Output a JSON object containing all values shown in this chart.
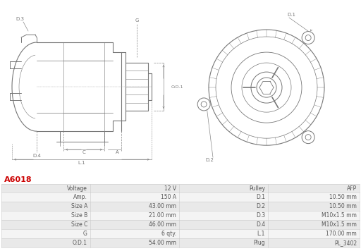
{
  "title": "A6018",
  "title_color": "#cc0000",
  "bg_color": "#ffffff",
  "table_data": [
    [
      "Voltage",
      "12 V",
      "Pulley",
      "AFP"
    ],
    [
      "Amp.",
      "150 A",
      "D.1",
      "10.50 mm"
    ],
    [
      "Size A",
      "43.00 mm",
      "D.2",
      "10.50 mm"
    ],
    [
      "Size B",
      "21.00 mm",
      "D.3",
      "M10x1.5 mm"
    ],
    [
      "Size C",
      "46.00 mm",
      "D.4",
      "M10x1.5 mm"
    ],
    [
      "G",
      "6 qty.",
      "L.1",
      "170.00 mm"
    ],
    [
      "O.D.1",
      "54.00 mm",
      "Plug",
      "PL_3402"
    ]
  ],
  "row_colors": [
    "#e9e9e9",
    "#f4f4f4",
    "#e9e9e9",
    "#f4f4f4",
    "#e9e9e9",
    "#f4f4f4",
    "#e9e9e9"
  ],
  "border_color": "#cccccc",
  "text_color": "#555555",
  "line_color": "#777777",
  "dim_color": "#888888"
}
